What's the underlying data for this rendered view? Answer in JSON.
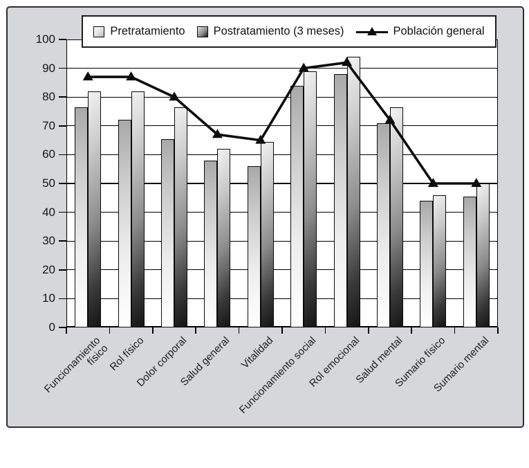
{
  "chart_data": {
    "type": "bar",
    "title": "",
    "xlabel": "",
    "ylabel": "",
    "categories": [
      "Funcionamiento\nfísico",
      "Rol físico",
      "Dolor corporal",
      "Salud general",
      "Vitalidad",
      "Funcionamiento social",
      "Rol emocional",
      "Salud mental",
      "Sumario físico",
      "Sumario mental"
    ],
    "series": [
      {
        "name": "Pretratamiento",
        "type": "bar",
        "values": [
          76.5,
          72,
          65.5,
          58,
          56,
          84,
          88,
          71,
          44,
          45.5
        ]
      },
      {
        "name": "Postratamiento (3 meses)",
        "type": "bar",
        "values": [
          82,
          82,
          76.5,
          62,
          64.5,
          89,
          94,
          76.5,
          46,
          50
        ]
      },
      {
        "name": "Población general",
        "type": "line",
        "values": [
          87,
          87,
          80,
          67,
          65,
          90,
          92,
          72,
          50,
          50
        ]
      }
    ],
    "ylim": [
      0,
      100
    ],
    "yticks": [
      0,
      10,
      20,
      30,
      40,
      50,
      60,
      70,
      80,
      90,
      100
    ],
    "grid": "horizontal",
    "legend_position": "top",
    "colors": {
      "background": "#d6d7da",
      "plot_background": "#ffffff",
      "pretratamiento_bar_top": "#a9a9a9",
      "pretratamiento_bar_bottom": "#ffffff",
      "postratamiento_bar_top": "#f2f2f2",
      "postratamiento_bar_bottom": "#141414",
      "poblacion_line": "#0d0d0d"
    }
  }
}
